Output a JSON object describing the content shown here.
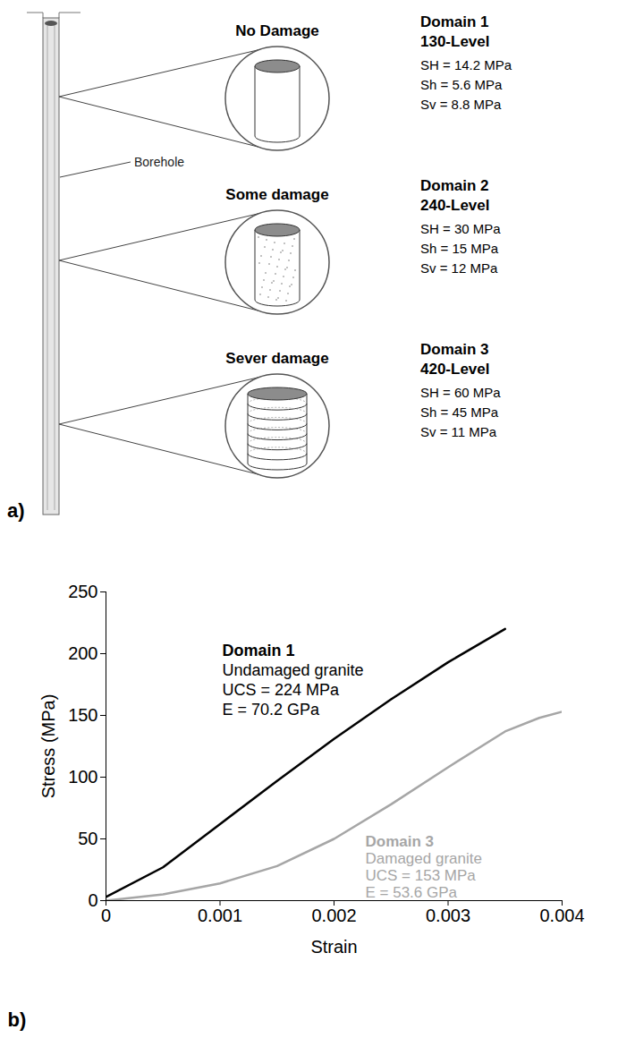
{
  "panel_a": {
    "panel_label": "a)",
    "borehole_label": "Borehole",
    "levels": [
      {
        "damage": "No Damage",
        "domain": "Domain 1",
        "level": "130-Level",
        "stresses": [
          "SH = 14.2 MPa",
          "Sh = 5.6 MPa",
          "Sv = 8.8 MPa"
        ]
      },
      {
        "damage": "Some damage",
        "domain": "Domain 2",
        "level": "240-Level",
        "stresses": [
          "SH = 30 MPa",
          "Sh = 15 MPa",
          "Sv = 12 MPa"
        ]
      },
      {
        "damage": "Sever damage",
        "domain": "Domain 3",
        "level": "420-Level",
        "stresses": [
          "SH = 60 MPa",
          "Sh = 45 MPa",
          "Sv = 11 MPa"
        ]
      }
    ]
  },
  "chart_data": {
    "type": "line",
    "panel_label": "b)",
    "x_label": "Strain",
    "y_label": "Stress (MPa)",
    "xlim": [
      0,
      0.004
    ],
    "xticks": [
      0,
      0.001,
      0.002,
      0.003,
      0.004
    ],
    "ylim": [
      0,
      250
    ],
    "yticks": [
      0,
      50,
      100,
      150,
      200,
      250
    ],
    "grid": false,
    "series": [
      {
        "name": "Domain 1",
        "color": "#000000",
        "x": [
          0,
          0.0005,
          0.001,
          0.0015,
          0.002,
          0.0025,
          0.003,
          0.0035
        ],
        "values": [
          3,
          27,
          62,
          97,
          131,
          163,
          193,
          220
        ]
      },
      {
        "name": "Domain 3",
        "color": "#a6a6a6",
        "x": [
          0,
          0.0005,
          0.001,
          0.0015,
          0.002,
          0.0025,
          0.003,
          0.0035,
          0.0038,
          0.004
        ],
        "values": [
          0,
          5,
          14,
          28,
          50,
          78,
          108,
          137,
          148,
          153
        ]
      }
    ],
    "annotations": [
      {
        "lines": [
          "Domain 1",
          "Undamaged granite",
          "UCS = 224 MPa",
          "E = 70.2 GPa"
        ],
        "color": "#000000"
      },
      {
        "lines": [
          "Domain 3",
          "Damaged granite",
          "UCS = 153 MPa",
          "E = 53.6 GPa"
        ],
        "color": "#a6a6a6"
      }
    ]
  }
}
